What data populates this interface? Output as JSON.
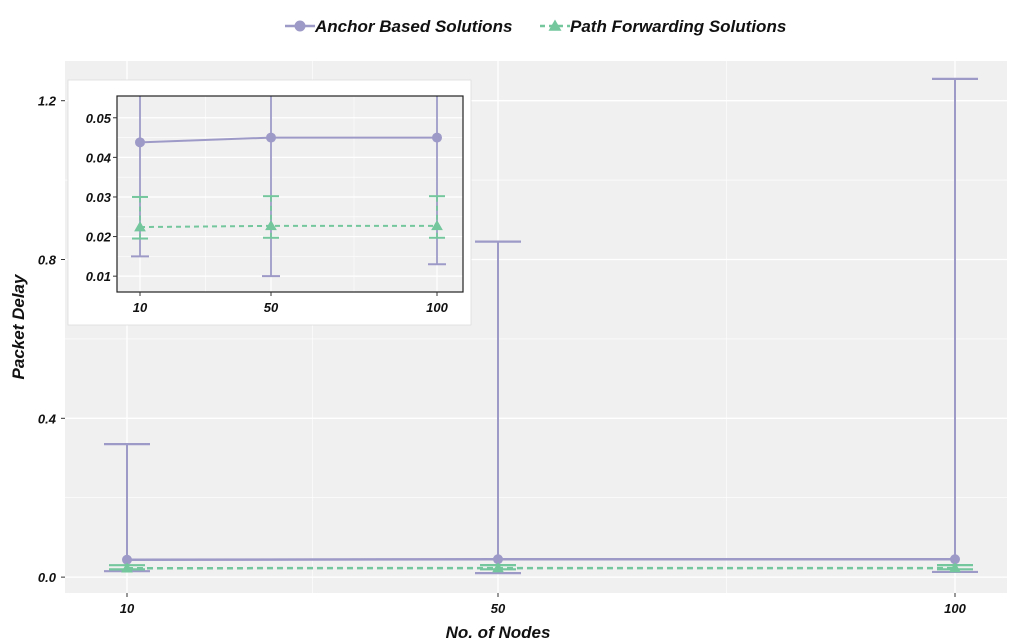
{
  "chart_data": {
    "type": "line",
    "xlabel": "No. of Nodes",
    "ylabel": "Packet Delay",
    "categories": [
      "10",
      "50",
      "100"
    ],
    "ylim": [
      -0.04,
      1.3
    ],
    "yticks": [
      "0.0",
      "0.4",
      "0.8",
      "1.2"
    ],
    "grid": true,
    "legend_position": "top",
    "series": [
      {
        "name": "Anchor Based Solutions",
        "color": "#9e9ac8",
        "marker": "circle",
        "linestyle": "solid",
        "values": [
          0.0438,
          0.045,
          0.045
        ],
        "err_low": [
          0.015,
          0.01,
          0.013
        ],
        "err_high": [
          0.335,
          0.845,
          1.255
        ]
      },
      {
        "name": "Path Forwarding Solutions",
        "color": "#74c69d",
        "marker": "triangle",
        "linestyle": "dashed",
        "values": [
          0.0224,
          0.0227,
          0.0227
        ],
        "err_low": [
          0.0195,
          0.0197,
          0.0197
        ],
        "err_high": [
          0.03,
          0.0302,
          0.0302
        ]
      }
    ],
    "inset": {
      "ylim": [
        0.006,
        0.0555
      ],
      "yticks": [
        "0.01",
        "0.02",
        "0.03",
        "0.04",
        "0.05"
      ],
      "categories": [
        "10",
        "50",
        "100"
      ]
    }
  }
}
